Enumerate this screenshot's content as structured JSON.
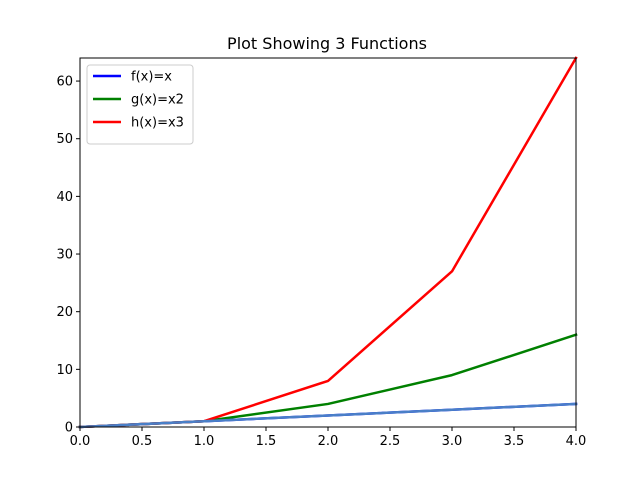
{
  "chart_data": {
    "type": "line",
    "title": "Plot Showing 3 Functions",
    "xlabel": "",
    "ylabel": "",
    "xlim": [
      0.0,
      4.0
    ],
    "ylim": [
      0,
      64
    ],
    "x_ticks": [
      "0.0",
      "0.5",
      "1.0",
      "1.5",
      "2.0",
      "2.5",
      "3.0",
      "3.5",
      "4.0"
    ],
    "y_ticks": [
      "0",
      "10",
      "20",
      "30",
      "40",
      "50",
      "60"
    ],
    "grid": false,
    "legend_position": "top-left",
    "series": [
      {
        "name": "f(x)=x",
        "color": "#0000ff",
        "x": [
          0,
          1,
          2,
          3,
          4
        ],
        "y": [
          0,
          1,
          2,
          3,
          4
        ]
      },
      {
        "name": "g(x)=x2",
        "color": "#008000",
        "x": [
          0,
          1,
          2,
          3,
          4
        ],
        "y": [
          0,
          1,
          4,
          9,
          16
        ]
      },
      {
        "name": "h(x)=x3",
        "color": "#ff0000",
        "x": [
          0,
          1,
          2,
          3,
          4
        ],
        "y": [
          0,
          1,
          8,
          27,
          64
        ]
      },
      {
        "name": "",
        "color": "#4a7fc7",
        "x": [
          0,
          1,
          2,
          3,
          4
        ],
        "y": [
          0,
          1,
          2,
          3,
          4
        ]
      }
    ]
  }
}
